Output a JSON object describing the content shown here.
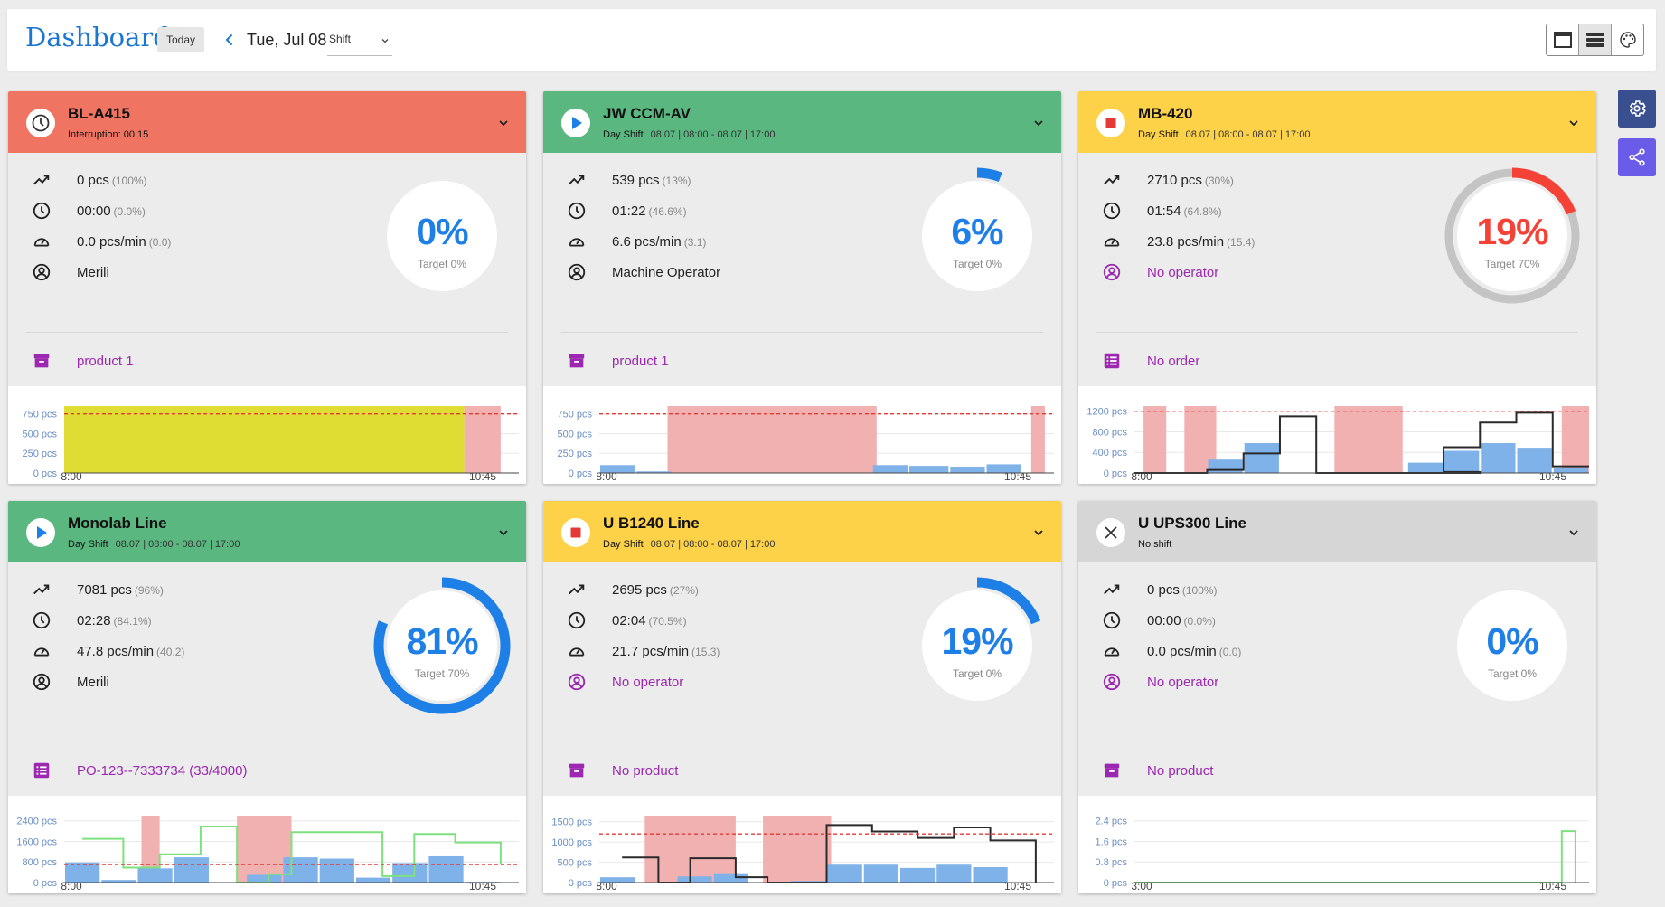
{
  "header": {
    "title": "Dashboard",
    "today_label": "Today",
    "date": "Tue, Jul 08",
    "shift_select": "Shift"
  },
  "colors": {
    "red": "#ef7562",
    "green": "#5bb780",
    "yellow": "#fdd248",
    "gray": "#d6d6d6",
    "blue": "#1e7fe6",
    "purple": "#9c27b0"
  },
  "machines": [
    {
      "name": "BL-A415",
      "status": "interruption",
      "header_color": "#ef7562",
      "subtitle_label": "Interruption: 00:15",
      "subtitle_value": "",
      "quantity": "0 pcs",
      "quantity_pct": "(100%)",
      "time": "00:00",
      "time_pct": "(0.0%)",
      "rate": "0.0 pcs/min",
      "rate_target": "(0.0)",
      "operator": "Merili",
      "operator_missing": false,
      "product": "product 1",
      "product_icon": "archive-icon",
      "oee_pct": "0%",
      "target": "Target 0%",
      "progress": 0,
      "gauge_color": "#1e7fe6",
      "pct_color": "#1e7fe6",
      "track": false,
      "chart_data": {
        "type": "bar",
        "ymax": 850,
        "yticks": [
          "750 pcs",
          "500 pcs",
          "250 pcs",
          "0 pcs"
        ],
        "ytickvals": [
          750,
          500,
          250,
          0
        ],
        "xstart": "8:00",
        "xend": "10:45",
        "target_line": 750,
        "state_bands": [
          {
            "from": 0.0,
            "to": 0.88,
            "color": "#dfdc34"
          },
          {
            "from": 0.88,
            "to": 0.96,
            "color": "#f2b1b1"
          }
        ],
        "bars": [],
        "line": []
      }
    },
    {
      "name": "JW CCM-AV",
      "status": "running",
      "header_color": "#5bb780",
      "subtitle_label": "Day Shift",
      "subtitle_value": "08.07 | 08:00 - 08.07 | 17:00",
      "quantity": "539 pcs",
      "quantity_pct": "(13%)",
      "time": "01:22",
      "time_pct": "(46.6%)",
      "rate": "6.6 pcs/min",
      "rate_target": "(3.1)",
      "operator": "Machine Operator",
      "operator_missing": false,
      "product": "product 1",
      "product_icon": "archive-icon",
      "oee_pct": "6%",
      "target": "Target 0%",
      "progress": 0.06,
      "gauge_color": "#1e7fe6",
      "pct_color": "#1e7fe6",
      "track": false,
      "chart_data": {
        "type": "bar",
        "ymax": 850,
        "yticks": [
          "750 pcs",
          "500 pcs",
          "250 pcs",
          "0 pcs"
        ],
        "ytickvals": [
          750,
          500,
          250,
          0
        ],
        "xstart": "8:00",
        "xend": "10:45",
        "target_line": 750,
        "state_bands": [
          {
            "from": 0.15,
            "to": 0.61,
            "color": "#f2b1b1"
          },
          {
            "from": 0.95,
            "to": 0.98,
            "color": "#f2b1b1"
          }
        ],
        "bars": [
          {
            "from": 0.0,
            "to": 0.08,
            "value": 100
          },
          {
            "from": 0.08,
            "to": 0.16,
            "value": 20
          },
          {
            "from": 0.6,
            "to": 0.68,
            "value": 100
          },
          {
            "from": 0.68,
            "to": 0.77,
            "value": 90
          },
          {
            "from": 0.77,
            "to": 0.85,
            "value": 80
          },
          {
            "from": 0.85,
            "to": 0.93,
            "value": 110
          }
        ],
        "line": []
      }
    },
    {
      "name": "MB-420",
      "status": "stopped",
      "header_color": "#fdd248",
      "subtitle_label": "Day Shift",
      "subtitle_value": "08.07 | 08:00 - 08.07 | 17:00",
      "quantity": "2710 pcs",
      "quantity_pct": "(30%)",
      "time": "01:54",
      "time_pct": "(64.8%)",
      "rate": "23.8 pcs/min",
      "rate_target": "(15.4)",
      "operator": "No operator",
      "operator_missing": true,
      "product": "No order",
      "product_icon": "order-list-icon",
      "oee_pct": "19%",
      "target": "Target 70%",
      "progress": 0.19,
      "gauge_color": "#f44336",
      "pct_color": "#f44336",
      "track": true,
      "track_fraction": 0.7,
      "chart_data": {
        "type": "bar",
        "ymax": 1300,
        "yticks": [
          "1200 pcs",
          "800 pcs",
          "400 pcs",
          "0 pcs"
        ],
        "ytickvals": [
          1200,
          800,
          400,
          0
        ],
        "xstart": "8:00",
        "xend": "10:45",
        "target_line": 1200,
        "state_bands": [
          {
            "from": 0.02,
            "to": 0.07,
            "color": "#f2b1b1"
          },
          {
            "from": 0.11,
            "to": 0.18,
            "color": "#f2b1b1"
          },
          {
            "from": 0.44,
            "to": 0.59,
            "color": "#f2b1b1"
          },
          {
            "from": 0.94,
            "to": 1.0,
            "color": "#f2b1b1"
          }
        ],
        "bars": [
          {
            "from": 0.16,
            "to": 0.24,
            "value": 260
          },
          {
            "from": 0.24,
            "to": 0.32,
            "value": 580
          },
          {
            "from": 0.6,
            "to": 0.68,
            "value": 200
          },
          {
            "from": 0.68,
            "to": 0.76,
            "value": 430
          },
          {
            "from": 0.76,
            "to": 0.84,
            "value": 580
          },
          {
            "from": 0.84,
            "to": 0.92,
            "value": 490
          },
          {
            "from": 0.92,
            "to": 1.0,
            "value": 100
          }
        ],
        "line": [
          [
            0,
            0
          ],
          [
            0.16,
            0
          ],
          [
            0.16,
            60
          ],
          [
            0.24,
            60
          ],
          [
            0.24,
            380
          ],
          [
            0.32,
            380
          ],
          [
            0.32,
            1100
          ],
          [
            0.4,
            1100
          ],
          [
            0.4,
            0
          ],
          [
            0.76,
            0
          ],
          [
            0.76,
            20
          ],
          [
            0.68,
            20
          ],
          [
            0.68,
            500
          ],
          [
            0.76,
            500
          ],
          [
            0.76,
            980
          ],
          [
            0.84,
            980
          ],
          [
            0.84,
            1170
          ],
          [
            0.92,
            1170
          ],
          [
            0.92,
            130
          ],
          [
            1.0,
            130
          ]
        ]
      }
    },
    {
      "name": "Monolab Line",
      "status": "running",
      "header_color": "#5bb780",
      "subtitle_label": "Day Shift",
      "subtitle_value": "08.07 | 08:00 - 08.07 | 17:00",
      "quantity": "7081 pcs",
      "quantity_pct": "(96%)",
      "time": "02:28",
      "time_pct": "(84.1%)",
      "rate": "47.8 pcs/min",
      "rate_target": "(40.2)",
      "operator": "Merili",
      "operator_missing": false,
      "product": "PO-123--7333734 (33/4000)",
      "product_icon": "order-list-icon",
      "oee_pct": "81%",
      "target": "Target 70%",
      "progress": 0.81,
      "gauge_color": "#1e7fe6",
      "pct_color": "#1e7fe6",
      "track": false,
      "chart_data": {
        "type": "bar",
        "ymax": 2600,
        "yticks": [
          "2400 pcs",
          "1600 pcs",
          "800 pcs",
          "0 pcs"
        ],
        "ytickvals": [
          2400,
          1600,
          800,
          0
        ],
        "xstart": "8:00",
        "xend": "10:45",
        "target_line": 700,
        "state_bands": [
          {
            "from": 0.17,
            "to": 0.21,
            "color": "#f2b1b1"
          },
          {
            "from": 0.38,
            "to": 0.5,
            "color": "#f2b1b1"
          }
        ],
        "bars": [
          {
            "from": 0.0,
            "to": 0.08,
            "value": 780
          },
          {
            "from": 0.08,
            "to": 0.16,
            "value": 100
          },
          {
            "from": 0.16,
            "to": 0.24,
            "value": 550
          },
          {
            "from": 0.24,
            "to": 0.32,
            "value": 980
          },
          {
            "from": 0.4,
            "to": 0.48,
            "value": 300
          },
          {
            "from": 0.48,
            "to": 0.56,
            "value": 980
          },
          {
            "from": 0.56,
            "to": 0.64,
            "value": 930
          },
          {
            "from": 0.64,
            "to": 0.72,
            "value": 190
          },
          {
            "from": 0.72,
            "to": 0.8,
            "value": 760
          },
          {
            "from": 0.8,
            "to": 0.88,
            "value": 1020
          },
          {
            "from": 0.88,
            "to": 0.96,
            "value": 30
          }
        ],
        "line": [
          [
            0.04,
            1700
          ],
          [
            0.13,
            1700
          ],
          [
            0.13,
            580
          ],
          [
            0.21,
            580
          ],
          [
            0.21,
            1100
          ],
          [
            0.3,
            1100
          ],
          [
            0.3,
            2180
          ],
          [
            0.38,
            2180
          ],
          [
            0.38,
            0
          ],
          [
            0.45,
            0
          ],
          [
            0.45,
            320
          ],
          [
            0.5,
            320
          ],
          [
            0.5,
            1960
          ],
          [
            0.7,
            1960
          ],
          [
            0.7,
            250
          ],
          [
            0.77,
            250
          ],
          [
            0.77,
            1890
          ],
          [
            0.86,
            1890
          ],
          [
            0.86,
            1560
          ],
          [
            0.96,
            1560
          ],
          [
            0.96,
            700
          ]
        ]
      }
    },
    {
      "name": "U B1240 Line",
      "status": "stopped",
      "header_color": "#fdd248",
      "subtitle_label": "Day Shift",
      "subtitle_value": "08.07 | 08:00 - 08.07 | 17:00",
      "quantity": "2695 pcs",
      "quantity_pct": "(27%)",
      "time": "02:04",
      "time_pct": "(70.5%)",
      "rate": "21.7 pcs/min",
      "rate_target": "(15.3)",
      "operator": "No operator",
      "operator_missing": true,
      "product": "No product",
      "product_icon": "archive-icon",
      "oee_pct": "19%",
      "target": "Target 0%",
      "progress": 0.19,
      "gauge_color": "#1e7fe6",
      "pct_color": "#1e7fe6",
      "track": false,
      "chart_data": {
        "type": "bar",
        "ymax": 1650,
        "yticks": [
          "1500 pcs",
          "1000 pcs",
          "500 pcs",
          "0 pcs"
        ],
        "ytickvals": [
          1500,
          1000,
          500,
          0
        ],
        "xstart": "8:00",
        "xend": "10:45",
        "target_line": 1200,
        "state_bands": [
          {
            "from": 0.1,
            "to": 0.3,
            "color": "#f2b1b1"
          },
          {
            "from": 0.36,
            "to": 0.51,
            "color": "#f2b1b1"
          }
        ],
        "bars": [
          {
            "from": 0.0,
            "to": 0.08,
            "value": 130
          },
          {
            "from": 0.17,
            "to": 0.25,
            "value": 150
          },
          {
            "from": 0.25,
            "to": 0.33,
            "value": 230
          },
          {
            "from": 0.42,
            "to": 0.5,
            "value": 40
          },
          {
            "from": 0.5,
            "to": 0.58,
            "value": 440
          },
          {
            "from": 0.58,
            "to": 0.66,
            "value": 440
          },
          {
            "from": 0.66,
            "to": 0.74,
            "value": 360
          },
          {
            "from": 0.74,
            "to": 0.82,
            "value": 440
          },
          {
            "from": 0.82,
            "to": 0.9,
            "value": 380
          }
        ],
        "line": [
          [
            0.05,
            620
          ],
          [
            0.13,
            620
          ],
          [
            0.13,
            0
          ],
          [
            0.2,
            0
          ],
          [
            0.2,
            600
          ],
          [
            0.3,
            600
          ],
          [
            0.3,
            130
          ],
          [
            0.37,
            130
          ],
          [
            0.37,
            0
          ],
          [
            0.5,
            0
          ],
          [
            0.5,
            1420
          ],
          [
            0.6,
            1420
          ],
          [
            0.6,
            1260
          ],
          [
            0.7,
            1260
          ],
          [
            0.7,
            1100
          ],
          [
            0.78,
            1100
          ],
          [
            0.78,
            1360
          ],
          [
            0.86,
            1360
          ],
          [
            0.86,
            1040
          ],
          [
            0.96,
            1040
          ],
          [
            0.96,
            0
          ]
        ]
      }
    },
    {
      "name": "U UPS300 Line",
      "status": "no-shift",
      "header_color": "#d6d6d6",
      "subtitle_label": "No shift",
      "subtitle_value": "",
      "quantity": "0 pcs",
      "quantity_pct": "(100%)",
      "time": "00:00",
      "time_pct": "(0.0%)",
      "rate": "0.0 pcs/min",
      "rate_target": "(0.0)",
      "operator": "No operator",
      "operator_missing": true,
      "product": "No product",
      "product_icon": "archive-icon",
      "oee_pct": "0%",
      "target": "Target 0%",
      "progress": 0,
      "gauge_color": "#1e7fe6",
      "pct_color": "#1e7fe6",
      "track": false,
      "chart_data": {
        "type": "line",
        "ymax": 2.6,
        "yticks": [
          "2.4 pcs",
          "1.6 pcs",
          "0.8 pcs",
          "0 pcs"
        ],
        "ytickvals": [
          2.4,
          1.6,
          0.8,
          0
        ],
        "xstart": "3:00",
        "xend": "10:45",
        "target_line": null,
        "state_bands": [],
        "bars": [],
        "line": [
          [
            0,
            0
          ],
          [
            0.94,
            0
          ],
          [
            0.94,
            2
          ],
          [
            0.97,
            2
          ],
          [
            0.97,
            0
          ]
        ]
      }
    }
  ]
}
